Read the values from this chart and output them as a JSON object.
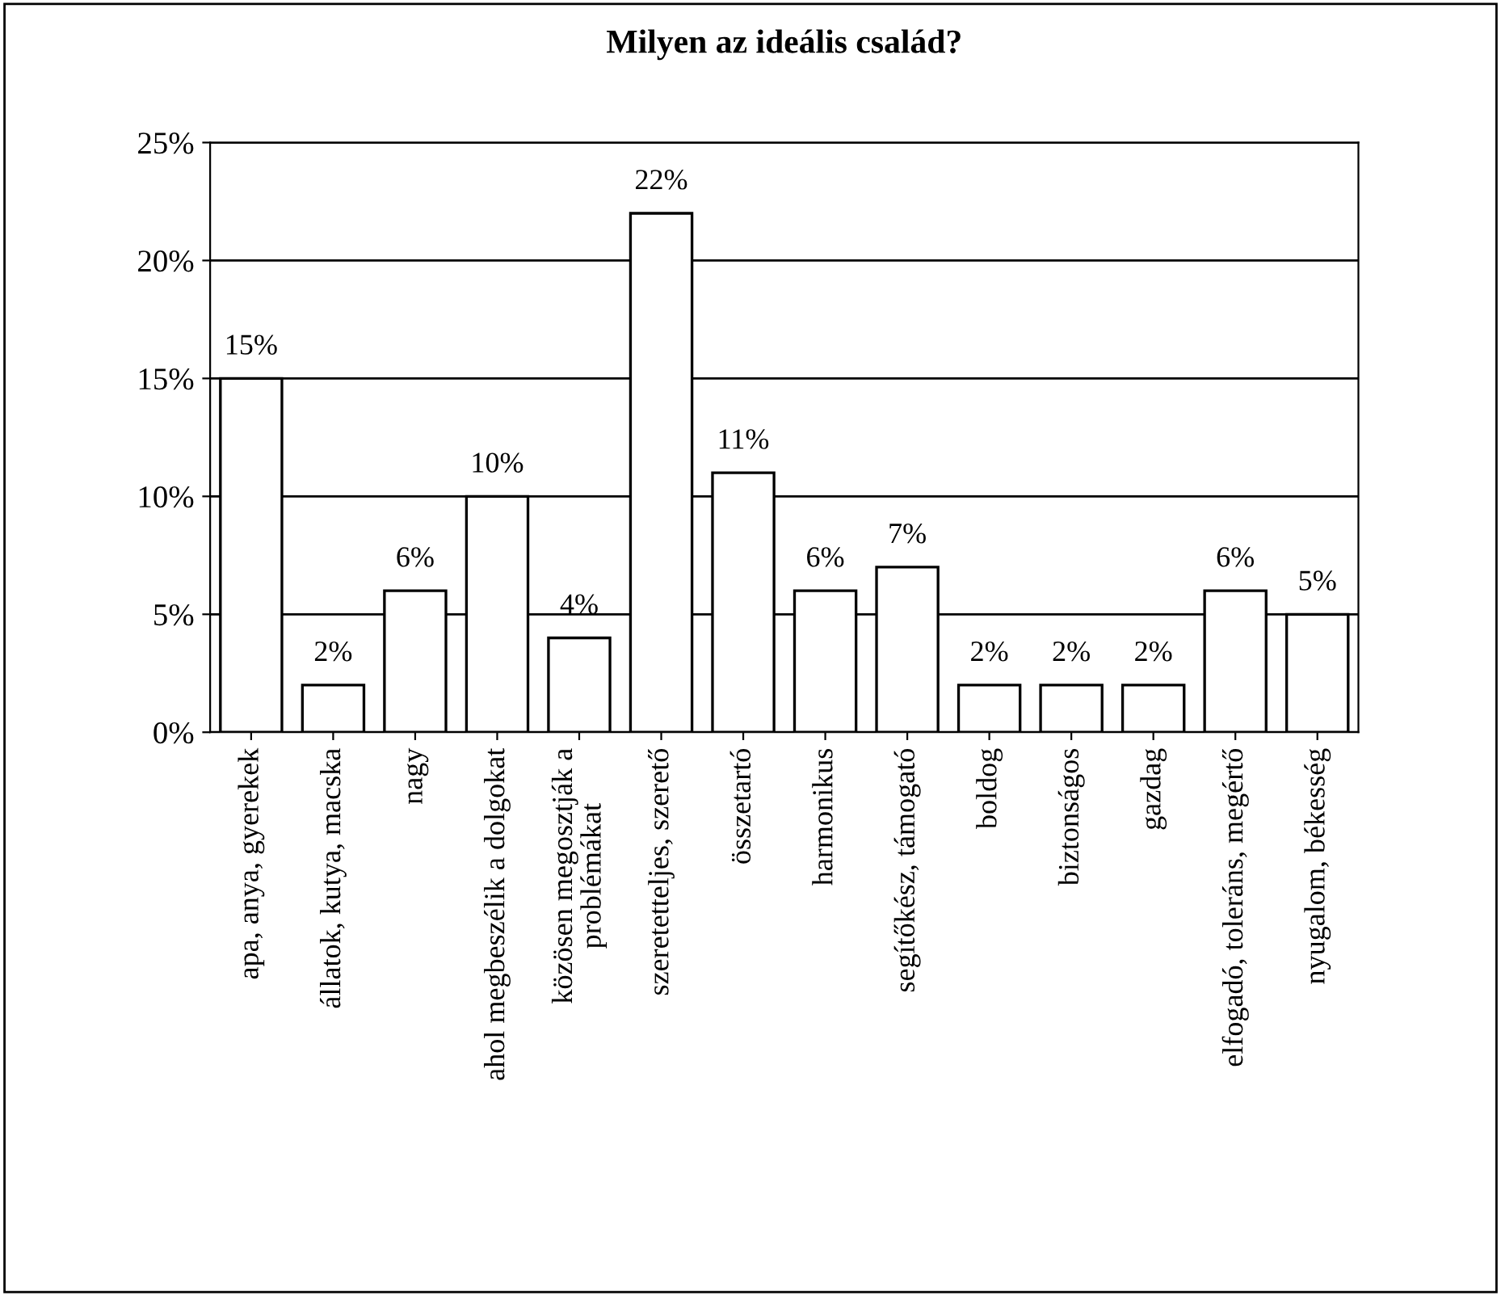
{
  "chart_data": {
    "type": "bar",
    "title": "Milyen az ideális család?",
    "categories": [
      "apa, anya, gyerekek",
      "állatok, kutya, macska",
      "nagy",
      "ahol megbeszélik a dolgokat",
      "közösen megosztják a\nproblémákat",
      "szeretetteljes, szerető",
      "összetartó",
      "harmonikus",
      "segítőkész, támogató",
      "boldog",
      "biztonságos",
      "gazdag",
      "elfogadó, toleráns, megértő",
      "nyugalom, békesség"
    ],
    "values": [
      15,
      2,
      6,
      10,
      4,
      22,
      11,
      6,
      7,
      2,
      2,
      2,
      6,
      5
    ],
    "value_labels": [
      "15%",
      "2%",
      "6%",
      "10%",
      "4%",
      "22%",
      "11%",
      "6%",
      "7%",
      "2%",
      "2%",
      "2%",
      "6%",
      "5%"
    ],
    "color": "#ffffff",
    "ylim": [
      0,
      25
    ],
    "yticks": [
      {
        "value": 0,
        "label": "0%"
      },
      {
        "value": 5,
        "label": "5%"
      },
      {
        "value": 10,
        "label": "10%"
      },
      {
        "value": 15,
        "label": "15%"
      },
      {
        "value": 20,
        "label": "20%"
      },
      {
        "value": 25,
        "label": "25%"
      }
    ],
    "grid": "y",
    "legend": false
  }
}
